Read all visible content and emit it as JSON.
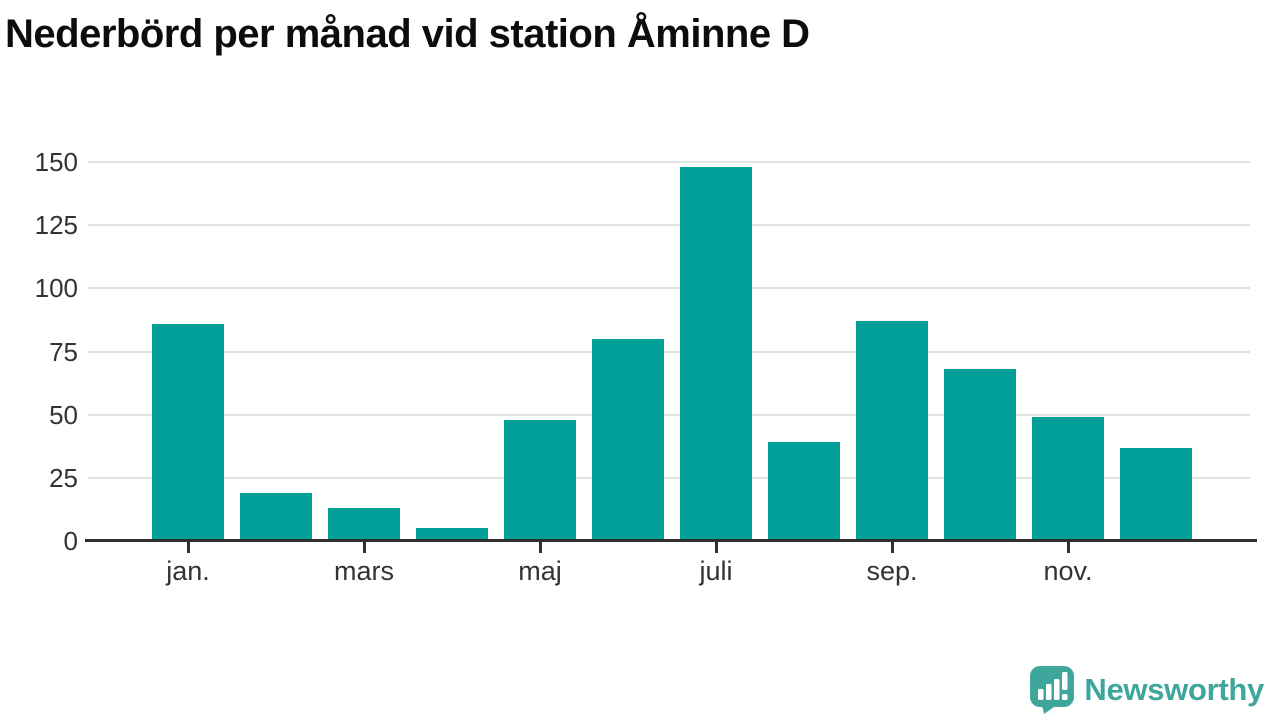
{
  "title": "Nederbörd per månad vid station Åminne D",
  "colors": {
    "bar": "#00a098",
    "grid": "#e3e3e3",
    "axis": "#303030",
    "tick_label": "#333333",
    "title": "#0d0d0d",
    "brand": "#3fa69c"
  },
  "chart_data": {
    "type": "bar",
    "title": "Nederbörd per månad vid station Åminne D",
    "categories": [
      "jan.",
      "feb.",
      "mars",
      "apr.",
      "maj",
      "juni",
      "juli",
      "aug.",
      "sep.",
      "okt.",
      "nov.",
      "dec."
    ],
    "values": [
      86,
      19,
      13,
      5,
      48,
      80,
      148,
      39,
      87,
      68,
      49,
      37
    ],
    "xlabel": "",
    "ylabel": "",
    "ylim": [
      0,
      150
    ],
    "yticks": [
      0,
      25,
      50,
      75,
      100,
      125,
      150
    ],
    "visible_x_labels": [
      "jan.",
      "mars",
      "maj",
      "juli",
      "sep.",
      "nov."
    ],
    "visible_x_label_indices": [
      0,
      2,
      4,
      6,
      8,
      10
    ],
    "grid": "horizontal",
    "legend": "none",
    "bar_color": "#00a098"
  },
  "footer": {
    "brand_name": "Newsworthy",
    "logo_icon": "newsworthy-speech-bubble-bar-chart"
  }
}
